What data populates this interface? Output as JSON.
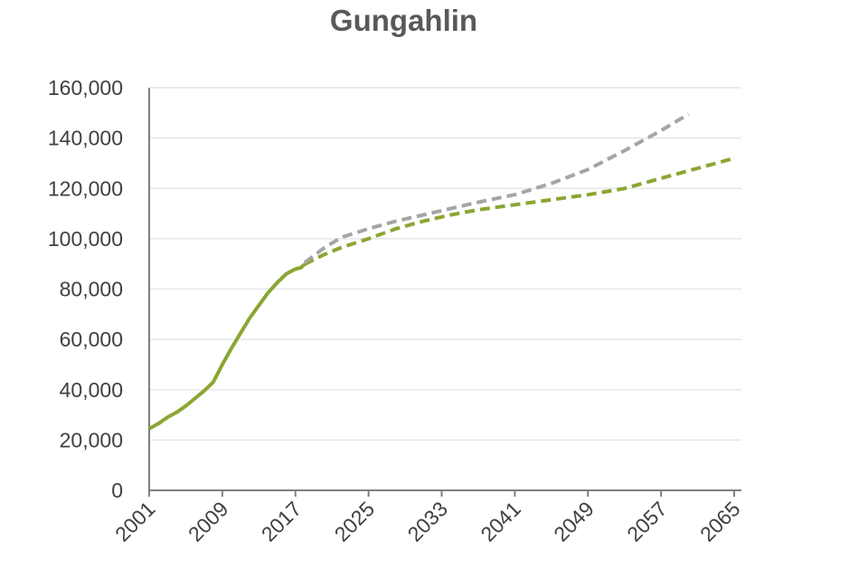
{
  "chart_data": {
    "type": "line",
    "title": "Gungahlin",
    "xlabel": "",
    "ylabel": "",
    "xlim": [
      2001,
      2065
    ],
    "ylim": [
      0,
      160000
    ],
    "x_ticks": [
      "2001",
      "2009",
      "2017",
      "2025",
      "2033",
      "2041",
      "2049",
      "2057",
      "2065"
    ],
    "y_ticks": [
      "0",
      "20,000",
      "40,000",
      "60,000",
      "80,000",
      "100,000",
      "120,000",
      "140,000",
      "160,000"
    ],
    "grid": true,
    "legend": "none",
    "colors": {
      "green": "#8aa632",
      "gray": "#a5a5a5",
      "axis": "#7f7f7f",
      "grid": "#e6e6e6"
    },
    "series": [
      {
        "style": "solid",
        "color": "#8aa632",
        "points": [
          [
            2001,
            24500
          ],
          [
            2002,
            26500
          ],
          [
            2003,
            29000
          ],
          [
            2004,
            31000
          ],
          [
            2005,
            33500
          ],
          [
            2006,
            36500
          ],
          [
            2007,
            39500
          ],
          [
            2008,
            43000
          ],
          [
            2009,
            50000
          ],
          [
            2010,
            56500
          ],
          [
            2011,
            62500
          ],
          [
            2012,
            68500
          ],
          [
            2013,
            73500
          ],
          [
            2014,
            78500
          ],
          [
            2015,
            82500
          ],
          [
            2016,
            86000
          ],
          [
            2017,
            88000
          ],
          [
            2017.6,
            88500
          ],
          [
            2018,
            89800
          ]
        ]
      },
      {
        "style": "dashed",
        "color": "#8aa632",
        "points": [
          [
            2018,
            89800
          ],
          [
            2020,
            93500
          ],
          [
            2022,
            96500
          ],
          [
            2025,
            100000
          ],
          [
            2028,
            104000
          ],
          [
            2031,
            107000
          ],
          [
            2034,
            109500
          ],
          [
            2037,
            111500
          ],
          [
            2041,
            113500
          ],
          [
            2045,
            115500
          ],
          [
            2049,
            117500
          ],
          [
            2053,
            120000
          ],
          [
            2057,
            124000
          ],
          [
            2061,
            128000
          ],
          [
            2065,
            132000
          ]
        ]
      },
      {
        "style": "dashed",
        "color": "#a5a5a5",
        "points": [
          [
            2018,
            90500
          ],
          [
            2020,
            96000
          ],
          [
            2022,
            100500
          ],
          [
            2025,
            104000
          ],
          [
            2028,
            107000
          ],
          [
            2031,
            109500
          ],
          [
            2034,
            112000
          ],
          [
            2037,
            114500
          ],
          [
            2041,
            117500
          ],
          [
            2045,
            122000
          ],
          [
            2049,
            127500
          ],
          [
            2053,
            135000
          ],
          [
            2057,
            143000
          ],
          [
            2060,
            149500
          ]
        ]
      }
    ]
  }
}
